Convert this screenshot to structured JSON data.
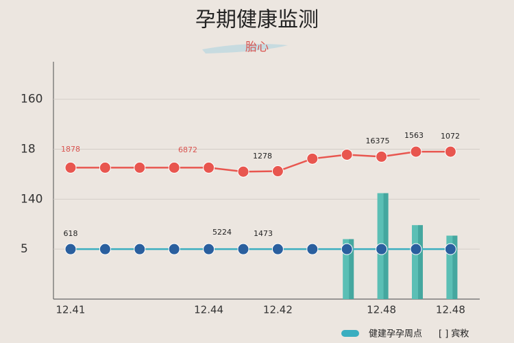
{
  "chart_data": {
    "type": "line",
    "title": "孕期健康监测",
    "subtitle": "胎心",
    "categories": [
      "12.41",
      null,
      null,
      null,
      "12.44",
      null,
      "12.42",
      null,
      null,
      "12.48",
      null,
      "12.48"
    ],
    "ylim": [
      0,
      4.75
    ],
    "yticks": [
      {
        "value": 1,
        "label": "5"
      },
      {
        "value": 2,
        "label": "140"
      },
      {
        "value": 3,
        "label": "18"
      },
      {
        "value": 4,
        "label": "160"
      }
    ],
    "grid": true,
    "series": [
      {
        "type": "line",
        "color": "#e8564f",
        "marker": "#e8564f",
        "values": [
          2.63,
          2.63,
          2.63,
          2.63,
          2.63,
          2.55,
          2.56,
          2.81,
          2.89,
          2.85,
          2.95,
          2.95
        ]
      },
      {
        "type": "line",
        "color": "#3aaec0",
        "marker": "#2a5f9e",
        "values": [
          1,
          1,
          1,
          1,
          1,
          1,
          1,
          1,
          1,
          1,
          1,
          1
        ]
      },
      {
        "type": "bar",
        "name": "健建孕孕周点",
        "color": "#5bbfb5",
        "values": [
          null,
          null,
          null,
          null,
          null,
          null,
          null,
          null,
          1.2,
          2.12,
          1.48,
          1.27
        ]
      }
    ],
    "annotations": [
      "1878",
      "6872",
      "1278",
      "16375",
      "1563",
      "1072",
      "618",
      "5224",
      "1473"
    ],
    "legend_note": "[ ] 宾敉",
    "legend": "bottom-right"
  }
}
